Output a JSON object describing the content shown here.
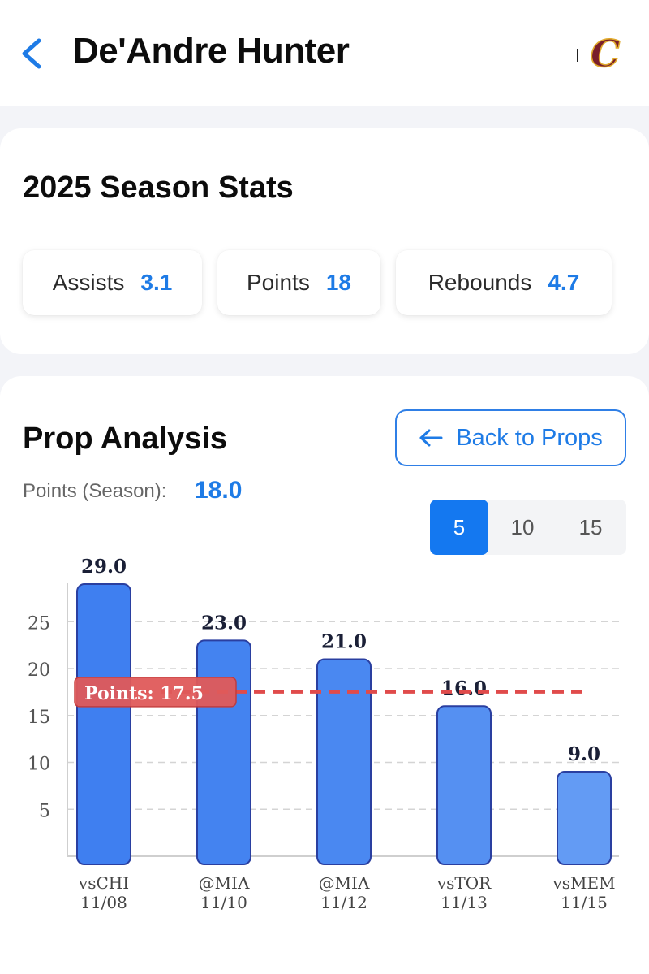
{
  "header": {
    "player_name": "De'Andre Hunter",
    "team_logo_letter": "C"
  },
  "season_stats": {
    "title": "2025 Season Stats",
    "items": [
      {
        "label": "Assists",
        "value": "3.1"
      },
      {
        "label": "Points",
        "value": "18"
      },
      {
        "label": "Rebounds",
        "value": "4.7"
      }
    ]
  },
  "prop_analysis": {
    "title": "Prop Analysis",
    "back_label": "Back to Props",
    "season_label": "Points (Season):",
    "season_value": "18.0",
    "game_count_options": [
      "5",
      "10",
      "15"
    ],
    "selected_option": "5"
  },
  "chart_data": {
    "type": "bar",
    "categories": [
      "vsCHI 11/08",
      "@MIA 11/10",
      "@MIA 11/12",
      "vsTOR 11/13",
      "vsMEM 11/15"
    ],
    "category_lines": [
      [
        "vsCHI",
        "11/08"
      ],
      [
        "@MIA",
        "11/10"
      ],
      [
        "@MIA",
        "11/12"
      ],
      [
        "vsTOR",
        "11/13"
      ],
      [
        "vsMEM",
        "11/15"
      ]
    ],
    "values": [
      29.0,
      23.0,
      21.0,
      16.0,
      9.0
    ],
    "value_labels": [
      "29.0",
      "23.0",
      "21.0",
      "16.0",
      "9.0"
    ],
    "yticks": [
      5,
      10,
      15,
      20,
      25
    ],
    "ylim": [
      0,
      30
    ],
    "grid": true,
    "reference_line": {
      "label": "Points: 17.5",
      "value": 17.5
    },
    "colors": {
      "bar_fill": "#4a86f0",
      "bar_stroke": "#2a3fa0",
      "ref_line": "#e04b4b",
      "ref_label_fill": "#e05a5a"
    }
  }
}
